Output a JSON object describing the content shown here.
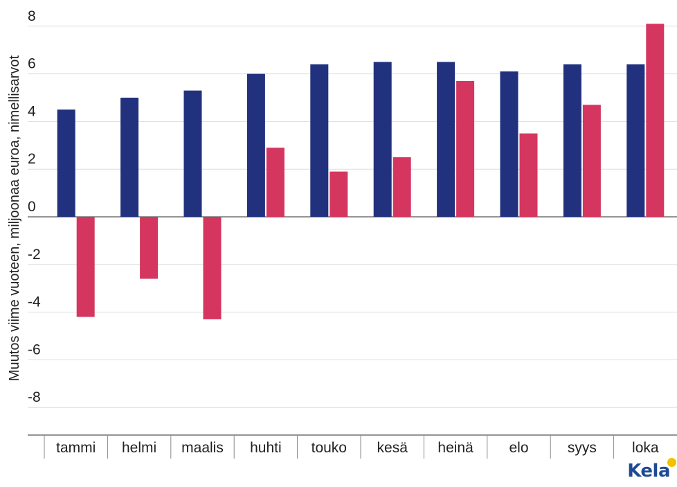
{
  "chart_data": {
    "type": "bar",
    "categories": [
      "tammi",
      "helmi",
      "maalis",
      "huhti",
      "touko",
      "kesä",
      "heinä",
      "elo",
      "syys",
      "loka"
    ],
    "series": [
      {
        "color": "#21317d",
        "values": [
          4.5,
          5.0,
          5.3,
          6.0,
          6.4,
          6.5,
          6.5,
          6.1,
          6.4,
          6.4
        ]
      },
      {
        "color": "#d4365f",
        "values": [
          -4.2,
          -2.6,
          -4.3,
          2.9,
          1.9,
          2.5,
          5.7,
          3.5,
          4.7,
          8.1
        ]
      }
    ],
    "ylabel": "Muutos viime vuoteen, miljoonaa euroa, nimellisarvot",
    "ylim": [
      -9.5,
      8.5
    ],
    "yticks": [
      8,
      6,
      4,
      2,
      0,
      -2,
      -4,
      -6,
      -8
    ],
    "grid": true
  },
  "logo_text": "Kela"
}
